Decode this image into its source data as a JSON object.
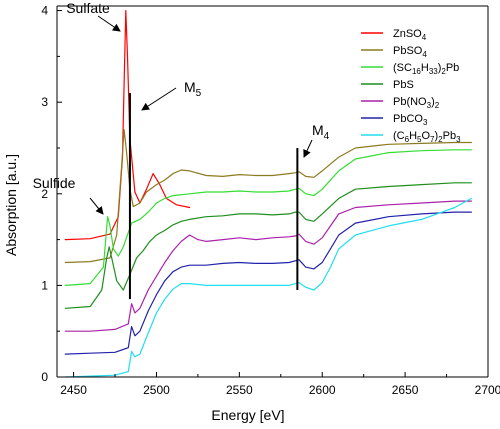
{
  "chart_data": {
    "type": "line",
    "xlabel": "Energy [eV]",
    "ylabel": "Absorption [a.u.]",
    "xlim": [
      2440,
      2700
    ],
    "ylim": [
      0,
      4.05
    ],
    "xticks": [
      2450,
      2500,
      2550,
      2600,
      2650,
      2700
    ],
    "yticks": [
      0,
      1,
      2,
      3,
      4
    ],
    "xtick_labels": [
      "2450",
      "2500",
      "2550",
      "2600",
      "2650",
      "2700"
    ],
    "ytick_labels": [
      "0",
      "1",
      "2",
      "3",
      "4"
    ],
    "grid": false,
    "legend_position": "top-right",
    "series": [
      {
        "name": "ZnSO4",
        "legend_base": "ZnSO",
        "legend_sub_1": "4",
        "legend_tail_1": "",
        "legend_sub_2": "",
        "legend_tail_2": "",
        "legend_sub_3": "",
        "legend_tail_3": "",
        "color": "#ff0000",
        "x": [
          2445,
          2460,
          2472,
          2477,
          2479.5,
          2480.5,
          2481.5,
          2482.5,
          2484,
          2487,
          2490,
          2494,
          2498,
          2502,
          2506,
          2512,
          2520
        ],
        "values": [
          1.5,
          1.51,
          1.56,
          1.75,
          2.4,
          3.2,
          4.0,
          3.5,
          2.6,
          2.02,
          1.9,
          2.05,
          2.22,
          2.1,
          1.95,
          1.88,
          1.85
        ]
      },
      {
        "name": "PbSO4",
        "legend_base": "PbSO",
        "legend_sub_1": "4",
        "legend_tail_1": "",
        "legend_sub_2": "",
        "legend_tail_2": "",
        "legend_sub_3": "",
        "legend_tail_3": "",
        "color": "#8c7a1f",
        "x": [
          2445,
          2460,
          2472,
          2476,
          2479,
          2480.5,
          2482,
          2484,
          2486,
          2490,
          2494,
          2500,
          2505,
          2510,
          2515,
          2520,
          2530,
          2540,
          2550,
          2560,
          2570,
          2580,
          2584,
          2586,
          2590,
          2595,
          2600,
          2610,
          2620,
          2640,
          2660,
          2680,
          2690
        ],
        "values": [
          1.25,
          1.26,
          1.3,
          1.55,
          2.3,
          2.7,
          2.45,
          2.05,
          1.86,
          1.9,
          2.02,
          2.1,
          2.15,
          2.22,
          2.26,
          2.25,
          2.2,
          2.19,
          2.21,
          2.2,
          2.2,
          2.22,
          2.23,
          2.24,
          2.19,
          2.18,
          2.25,
          2.4,
          2.5,
          2.54,
          2.55,
          2.56,
          2.56
        ]
      },
      {
        "name": "(SC16H33)2Pb",
        "legend_base": "(SC",
        "legend_sub_1": "16",
        "legend_tail_1": "H",
        "legend_sub_2": "33",
        "legend_tail_2": ")",
        "legend_sub_3": "2",
        "legend_tail_3": "Pb",
        "color": "#33dd33",
        "x": [
          2445,
          2460,
          2468,
          2470.5,
          2472,
          2474,
          2477,
          2480,
          2485,
          2490,
          2495,
          2500,
          2505,
          2510,
          2520,
          2530,
          2540,
          2550,
          2560,
          2570,
          2580,
          2584,
          2586,
          2590,
          2595,
          2600,
          2610,
          2620,
          2640,
          2660,
          2680,
          2690
        ],
        "values": [
          1.0,
          1.02,
          1.2,
          1.75,
          1.65,
          1.4,
          1.32,
          1.42,
          1.68,
          1.72,
          1.8,
          1.9,
          1.95,
          1.98,
          2.0,
          2.02,
          2.02,
          2.03,
          2.02,
          2.02,
          2.03,
          2.05,
          2.06,
          2.0,
          1.98,
          2.05,
          2.25,
          2.38,
          2.45,
          2.47,
          2.48,
          2.48
        ]
      },
      {
        "name": "PbS",
        "legend_base": "PbS",
        "legend_sub_1": "",
        "legend_tail_1": "",
        "legend_sub_2": "",
        "legend_tail_2": "",
        "legend_sub_3": "",
        "legend_tail_3": "",
        "color": "#1e8f1e",
        "x": [
          2445,
          2460,
          2467,
          2470,
          2471.5,
          2473,
          2476,
          2480,
          2484,
          2488,
          2492,
          2496,
          2500,
          2505,
          2510,
          2515,
          2520,
          2530,
          2540,
          2550,
          2560,
          2570,
          2580,
          2584,
          2586,
          2590,
          2595,
          2600,
          2610,
          2620,
          2640,
          2660,
          2680,
          2690
        ],
        "values": [
          0.75,
          0.77,
          0.95,
          1.3,
          1.42,
          1.3,
          1.05,
          0.95,
          1.12,
          1.3,
          1.38,
          1.48,
          1.55,
          1.6,
          1.66,
          1.7,
          1.72,
          1.75,
          1.76,
          1.78,
          1.78,
          1.77,
          1.78,
          1.8,
          1.8,
          1.72,
          1.7,
          1.78,
          1.95,
          2.05,
          2.08,
          2.1,
          2.12,
          2.12
        ]
      },
      {
        "name": "Pb(NO3)2",
        "legend_base": "Pb(NO",
        "legend_sub_1": "3",
        "legend_tail_1": ")",
        "legend_sub_2": "2",
        "legend_tail_2": "",
        "legend_sub_3": "",
        "legend_tail_3": "",
        "color": "#aa22aa",
        "x": [
          2445,
          2460,
          2475,
          2483,
          2485,
          2487,
          2490,
          2495,
          2500,
          2505,
          2510,
          2515,
          2520,
          2525,
          2530,
          2540,
          2550,
          2560,
          2570,
          2580,
          2584,
          2586,
          2590,
          2595,
          2600,
          2605,
          2610,
          2620,
          2640,
          2660,
          2680,
          2690
        ],
        "values": [
          0.5,
          0.5,
          0.52,
          0.58,
          0.8,
          0.7,
          0.75,
          0.95,
          1.1,
          1.25,
          1.38,
          1.48,
          1.55,
          1.5,
          1.48,
          1.5,
          1.52,
          1.5,
          1.52,
          1.53,
          1.54,
          1.56,
          1.48,
          1.45,
          1.52,
          1.65,
          1.78,
          1.85,
          1.88,
          1.9,
          1.92,
          1.92
        ]
      },
      {
        "name": "PbCO3",
        "legend_base": "PbCO",
        "legend_sub_1": "3",
        "legend_tail_1": "",
        "legend_sub_2": "",
        "legend_tail_2": "",
        "legend_sub_3": "",
        "legend_tail_3": "",
        "color": "#2222aa",
        "x": [
          2445,
          2460,
          2475,
          2483,
          2485,
          2487,
          2490,
          2495,
          2500,
          2505,
          2510,
          2515,
          2520,
          2530,
          2540,
          2550,
          2560,
          2570,
          2580,
          2584,
          2586,
          2590,
          2595,
          2600,
          2605,
          2610,
          2620,
          2640,
          2660,
          2680,
          2690
        ],
        "values": [
          0.25,
          0.26,
          0.27,
          0.32,
          0.55,
          0.45,
          0.5,
          0.72,
          0.9,
          1.05,
          1.15,
          1.2,
          1.22,
          1.22,
          1.24,
          1.25,
          1.24,
          1.24,
          1.25,
          1.27,
          1.28,
          1.2,
          1.18,
          1.25,
          1.4,
          1.55,
          1.68,
          1.75,
          1.78,
          1.8,
          1.8
        ]
      },
      {
        "name": "(C6H5O7)2Pb3",
        "legend_base": "(C",
        "legend_sub_1": "6",
        "legend_tail_1": "H",
        "legend_sub_2": "5",
        "legend_tail_2": "O",
        "legend_sub_3": "7",
        "legend_tail_3": ")",
        "legend_sub_4": "2",
        "legend_tail_4": "Pb",
        "legend_sub_5": "3",
        "color": "#22ddee",
        "x": [
          2445,
          2460,
          2475,
          2483,
          2485,
          2487,
          2490,
          2495,
          2500,
          2505,
          2510,
          2515,
          2520,
          2530,
          2540,
          2550,
          2560,
          2570,
          2580,
          2584,
          2586,
          2590,
          2595,
          2600,
          2605,
          2610,
          2620,
          2640,
          2660,
          2680,
          2690
        ],
        "values": [
          0.0,
          0.01,
          0.02,
          0.06,
          0.28,
          0.22,
          0.25,
          0.48,
          0.7,
          0.85,
          0.96,
          1.02,
          1.02,
          1.0,
          1.0,
          1.0,
          1.0,
          1.0,
          1.0,
          1.02,
          1.03,
          0.98,
          0.95,
          1.03,
          1.2,
          1.4,
          1.55,
          1.65,
          1.72,
          1.85,
          1.95
        ]
      }
    ],
    "annotations": {
      "sulfate": "Sulfate",
      "sulfide": "Sulfide",
      "m5_base": "M",
      "m5_sub": "5",
      "m4_base": "M",
      "m4_sub": "4"
    },
    "reference_lines": [
      {
        "x": 2484,
        "y_from": 0.85,
        "y_to": 3.1
      },
      {
        "x": 2585,
        "y_from": 0.95,
        "y_to": 2.5
      }
    ]
  }
}
